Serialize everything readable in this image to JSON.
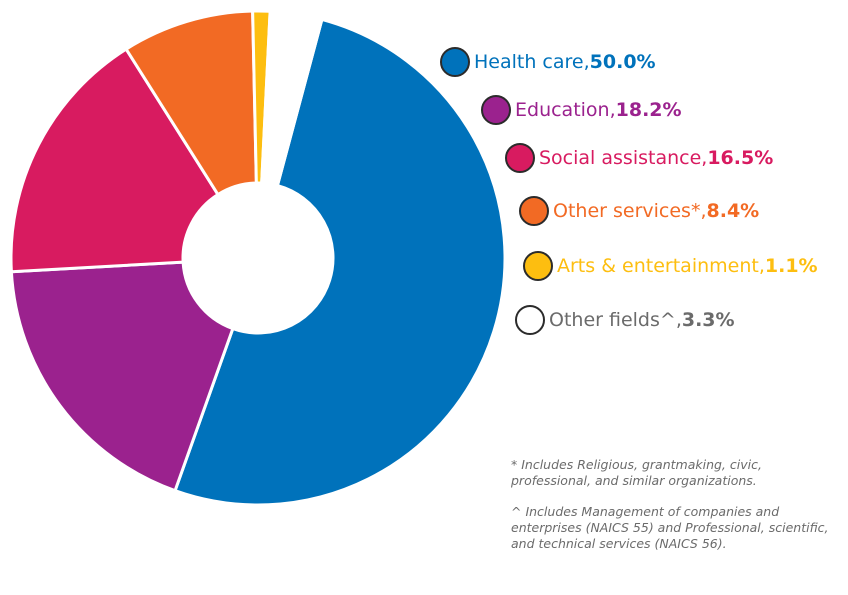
{
  "chart_data": {
    "type": "pie",
    "donut": true,
    "categories": [
      "Health care",
      "Education",
      "Social assistance",
      "Other services*",
      "Arts & entertainment",
      "Other fields^"
    ],
    "values": [
      50.0,
      18.2,
      16.5,
      8.4,
      1.1,
      3.3
    ],
    "value_labels": [
      "50.0%",
      "18.2%",
      "16.5%",
      "8.4%",
      "1.1%",
      "3.3%"
    ],
    "colors": [
      "#0072bb",
      "#9b228e",
      "#d81b60",
      "#f26a24",
      "#fdbe10",
      "#ffffff"
    ],
    "legend": "right",
    "notes": [
      "* Includes Religious, grantmaking, civic, professional, and similar organizations.",
      "^ Includes Management of companies and enterprises (NAICS 55) and Professional, scientific, and technical services (NAICS 56)."
    ]
  }
}
